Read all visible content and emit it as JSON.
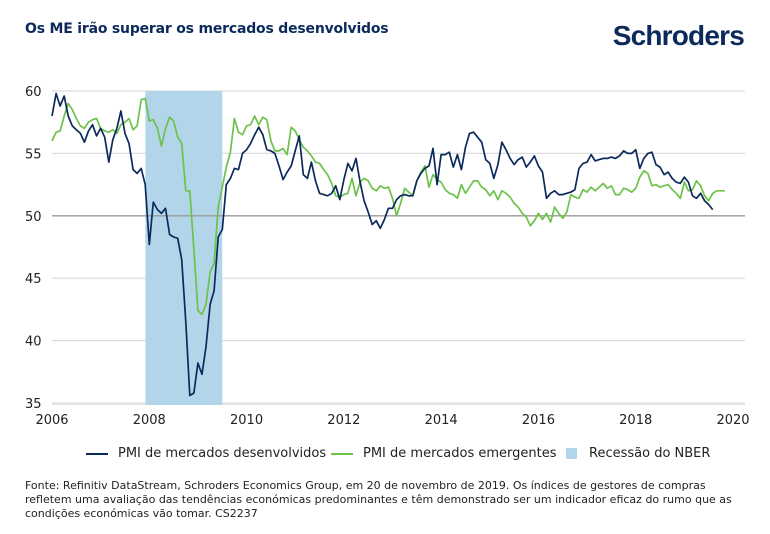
{
  "header": {
    "title": "Os ME irão superar os mercados desenvolvidos",
    "logo": "Schroders"
  },
  "colors": {
    "developed": "#0b2a5b",
    "emerging": "#6cc24a",
    "recession": "#b3d5ea",
    "grid": "#dcdcdc",
    "axis50": "#9a9a9a"
  },
  "legend": [
    {
      "label": "PMI de mercados desenvolvidos",
      "type": "line",
      "color": "#0b2a5b"
    },
    {
      "label": "PMI de mercados emergentes",
      "type": "line",
      "color": "#6cc24a"
    },
    {
      "label": "Recessão do NBER",
      "type": "box",
      "color": "#b3d5ea"
    }
  ],
  "footer": "Fonte: Refinitiv DataStream, Schroders Economics Group, em 20 de novembro de 2019. Os índices de gestores de compras refletem uma avaliação das tendências económicas predominantes e têm demonstrado ser um indicador eficaz do rumo que as condições económicas vão tomar. CS2237",
  "chart_data": {
    "type": "line",
    "title": "Os ME irão superar os mercados desenvolvidos",
    "xlabel": "",
    "ylabel": "",
    "x_start": "2006-01",
    "x_freq": "monthly",
    "xlim": [
      2006.0,
      2020.3
    ],
    "ylim": [
      35,
      60
    ],
    "x_ticks": [
      "2006",
      "2008",
      "2010",
      "2012",
      "2014",
      "2016",
      "2018",
      "2020"
    ],
    "y_ticks": [
      35,
      40,
      45,
      50,
      55,
      60
    ],
    "grid": true,
    "legend_position": "bottom",
    "shaded_regions": [
      {
        "label": "Recessão do NBER",
        "start": 2007.92,
        "end": 2009.5
      }
    ],
    "series": [
      {
        "name": "PMI de mercados desenvolvidos",
        "values": [
          58.0,
          59.8,
          58.8,
          59.6,
          58.0,
          57.2,
          56.9,
          56.6,
          55.9,
          56.8,
          57.3,
          56.4,
          57.0,
          56.3,
          54.3,
          56.1,
          57.0,
          58.4,
          56.6,
          55.8,
          53.7,
          53.4,
          53.8,
          52.5,
          47.7,
          51.1,
          50.5,
          50.2,
          50.6,
          48.5,
          48.3,
          48.2,
          46.5,
          41.5,
          35.6,
          35.8,
          38.2,
          37.3,
          39.5,
          42.9,
          44.0,
          48.3,
          48.9,
          52.5,
          53.0,
          53.8,
          53.7,
          55.0,
          55.3,
          55.8,
          56.5,
          57.1,
          56.5,
          55.3,
          55.2,
          55.0,
          54.0,
          52.9,
          53.5,
          54.0,
          55.2,
          56.4,
          53.3,
          53.0,
          54.3,
          52.8,
          51.8,
          51.7,
          51.6,
          51.8,
          52.4,
          51.3,
          52.9,
          54.2,
          53.6,
          54.6,
          52.7,
          51.2,
          50.3,
          49.3,
          49.6,
          49.0,
          49.7,
          50.6,
          50.6,
          51.3,
          51.6,
          51.7,
          51.6,
          51.6,
          52.8,
          53.4,
          53.8,
          54.0,
          55.4,
          52.5,
          54.9,
          54.9,
          55.1,
          53.9,
          54.9,
          53.7,
          55.5,
          56.6,
          56.7,
          56.3,
          55.9,
          54.5,
          54.2,
          53.0,
          54.1,
          55.9,
          55.3,
          54.6,
          54.1,
          54.5,
          54.7,
          53.9,
          54.3,
          54.8,
          54.0,
          53.5,
          51.4,
          51.8,
          52.0,
          51.7,
          51.7,
          51.8,
          51.9,
          52.1,
          53.8,
          54.2,
          54.3,
          54.9,
          54.4,
          54.5,
          54.6,
          54.6,
          54.7,
          54.6,
          54.8,
          55.2,
          55.0,
          55.0,
          55.3,
          53.8,
          54.6,
          55.0,
          55.1,
          54.1,
          53.9,
          53.3,
          53.5,
          53.0,
          52.7,
          52.6,
          53.1,
          52.7,
          51.6,
          51.4,
          51.8,
          51.2,
          50.9,
          50.5
        ],
        "color": "#0b2a5b"
      },
      {
        "name": "PMI de mercados emergentes",
        "values": [
          56.0,
          56.7,
          56.8,
          58.0,
          59.0,
          58.5,
          57.8,
          57.2,
          57.0,
          57.5,
          57.7,
          57.8,
          57.0,
          56.8,
          56.7,
          56.9,
          56.6,
          57.3,
          57.5,
          57.8,
          56.9,
          57.2,
          59.3,
          59.4,
          57.6,
          57.7,
          57.0,
          55.6,
          57.0,
          57.9,
          57.6,
          56.3,
          55.8,
          52.0,
          52.0,
          47.3,
          42.4,
          42.1,
          42.9,
          45.5,
          46.2,
          50.7,
          52.3,
          53.9,
          55.1,
          57.8,
          56.7,
          56.5,
          57.2,
          57.3,
          58.0,
          57.3,
          57.9,
          57.7,
          56.0,
          55.2,
          55.2,
          55.4,
          54.9,
          57.1,
          56.8,
          56.1,
          55.5,
          55.2,
          54.8,
          54.3,
          54.2,
          53.7,
          53.3,
          52.6,
          51.6,
          51.5,
          51.7,
          51.8,
          53.0,
          51.6,
          52.7,
          53.0,
          52.8,
          52.2,
          52.0,
          52.4,
          52.2,
          52.3,
          51.4,
          50.0,
          51.0,
          52.2,
          51.9,
          51.6,
          52.8,
          53.5,
          54.0,
          52.3,
          53.3,
          52.9,
          52.7,
          52.1,
          51.8,
          51.7,
          51.4,
          52.5,
          51.8,
          52.3,
          52.8,
          52.8,
          52.3,
          52.1,
          51.6,
          52.0,
          51.3,
          52.0,
          51.8,
          51.5,
          51.0,
          50.7,
          50.2,
          49.9,
          49.2,
          49.6,
          50.2,
          49.7,
          50.2,
          49.5,
          50.7,
          50.2,
          49.8,
          50.3,
          51.7,
          51.5,
          51.4,
          52.1,
          51.9,
          52.3,
          52.0,
          52.3,
          52.6,
          52.2,
          52.4,
          51.7,
          51.7,
          52.2,
          52.1,
          51.9,
          52.2,
          53.1,
          53.6,
          53.4,
          52.4,
          52.5,
          52.3,
          52.4,
          52.5,
          52.1,
          51.8,
          51.4,
          52.7,
          52.0,
          52.1,
          52.8,
          52.4,
          51.6,
          51.2,
          51.8,
          52.0,
          52.0,
          52.0
        ],
        "color": "#6cc24a"
      }
    ]
  }
}
